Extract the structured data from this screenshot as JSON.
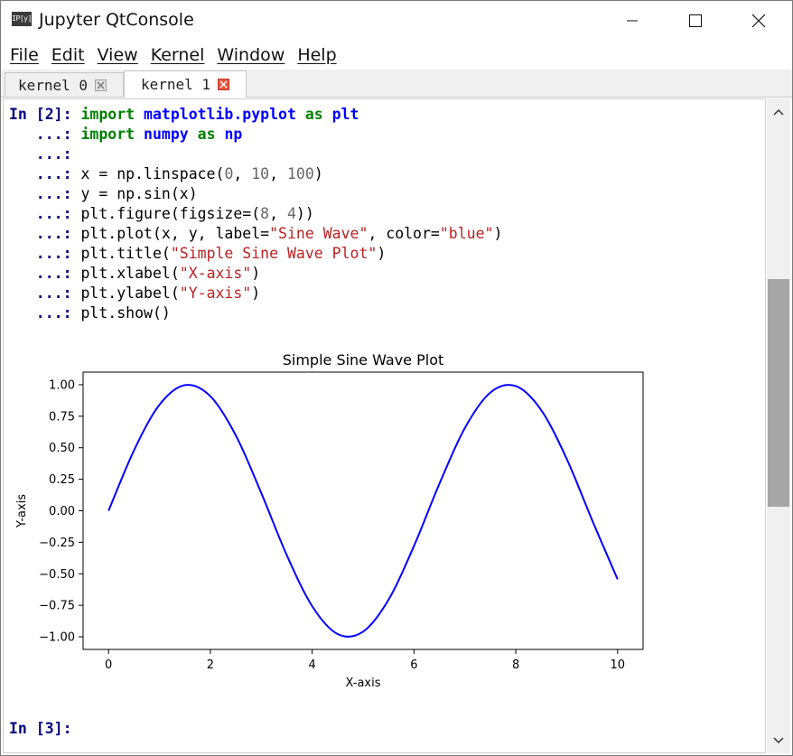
{
  "window": {
    "title": "Jupyter QtConsole",
    "icon_label": "IP[y]"
  },
  "menu": [
    "File",
    "Edit",
    "View",
    "Kernel",
    "Window",
    "Help"
  ],
  "tabs": [
    {
      "label": "kernel 0",
      "active": false
    },
    {
      "label": "kernel 1",
      "active": true
    }
  ],
  "cell": {
    "prompt": "In [2]:",
    "next_prompt": "In [3]:",
    "continuation": "...:",
    "lines": [
      [
        {
          "t": "kw",
          "v": "import "
        },
        {
          "t": "mod",
          "v": "matplotlib.pyplot"
        },
        {
          "t": "kw",
          "v": " as "
        },
        {
          "t": "mod",
          "v": "plt"
        }
      ],
      [
        {
          "t": "kw",
          "v": "import "
        },
        {
          "t": "mod",
          "v": "numpy"
        },
        {
          "t": "kw",
          "v": " as "
        },
        {
          "t": "mod",
          "v": "np"
        }
      ],
      [],
      [
        {
          "t": "p",
          "v": "x = np.linspace("
        },
        {
          "t": "num",
          "v": "0"
        },
        {
          "t": "p",
          "v": ", "
        },
        {
          "t": "num",
          "v": "10"
        },
        {
          "t": "p",
          "v": ", "
        },
        {
          "t": "num",
          "v": "100"
        },
        {
          "t": "p",
          "v": ")"
        }
      ],
      [
        {
          "t": "p",
          "v": "y = np.sin(x)"
        }
      ],
      [
        {
          "t": "p",
          "v": "plt.figure(figsize=("
        },
        {
          "t": "num",
          "v": "8"
        },
        {
          "t": "p",
          "v": ", "
        },
        {
          "t": "num",
          "v": "4"
        },
        {
          "t": "p",
          "v": "))"
        }
      ],
      [
        {
          "t": "p",
          "v": "plt.plot(x, y, label="
        },
        {
          "t": "str",
          "v": "\"Sine Wave\""
        },
        {
          "t": "p",
          "v": ", color="
        },
        {
          "t": "str",
          "v": "\"blue\""
        },
        {
          "t": "p",
          "v": ")"
        }
      ],
      [
        {
          "t": "p",
          "v": "plt.title("
        },
        {
          "t": "str",
          "v": "\"Simple Sine Wave Plot\""
        },
        {
          "t": "p",
          "v": ")"
        }
      ],
      [
        {
          "t": "p",
          "v": "plt.xlabel("
        },
        {
          "t": "str",
          "v": "\"X-axis\""
        },
        {
          "t": "p",
          "v": ")"
        }
      ],
      [
        {
          "t": "p",
          "v": "plt.ylabel("
        },
        {
          "t": "str",
          "v": "\"Y-axis\""
        },
        {
          "t": "p",
          "v": ")"
        }
      ],
      [
        {
          "t": "p",
          "v": "plt.show()"
        }
      ]
    ]
  },
  "colors": {
    "keyword": "#008000",
    "module": "#0000ff",
    "string": "#ba2121",
    "number": "#666666",
    "prompt": "#000080",
    "line": "#0000ff"
  },
  "chart_data": {
    "type": "line",
    "title": "Simple Sine Wave Plot",
    "xlabel": "X-axis",
    "ylabel": "Y-axis",
    "xlim": [
      -0.5,
      10.5
    ],
    "ylim": [
      -1.1,
      1.1
    ],
    "xticks": [
      0,
      2,
      4,
      6,
      8,
      10
    ],
    "xtick_labels": [
      "0",
      "2",
      "4",
      "6",
      "8",
      "10"
    ],
    "yticks": [
      1.0,
      0.75,
      0.5,
      0.25,
      0.0,
      -0.25,
      -0.5,
      -0.75,
      -1.0
    ],
    "ytick_labels": [
      "1.00",
      "0.75",
      "0.50",
      "0.25",
      "0.00",
      "−0.25",
      "−0.50",
      "−0.75",
      "−1.00"
    ],
    "grid": false,
    "series": [
      {
        "color": "#0000ff",
        "x": [
          0.0,
          0.5,
          1.0,
          1.5,
          2.0,
          2.5,
          3.0,
          3.5,
          4.0,
          4.5,
          5.0,
          5.5,
          6.0,
          6.5,
          7.0,
          7.5,
          8.0,
          8.5,
          9.0,
          9.5,
          10.0
        ],
        "y": [
          0.0,
          0.479,
          0.841,
          0.997,
          0.909,
          0.598,
          0.141,
          -0.351,
          -0.757,
          -0.978,
          -0.959,
          -0.706,
          -0.279,
          0.215,
          0.657,
          0.938,
          0.989,
          0.798,
          0.412,
          -0.075,
          -0.544
        ]
      }
    ]
  }
}
